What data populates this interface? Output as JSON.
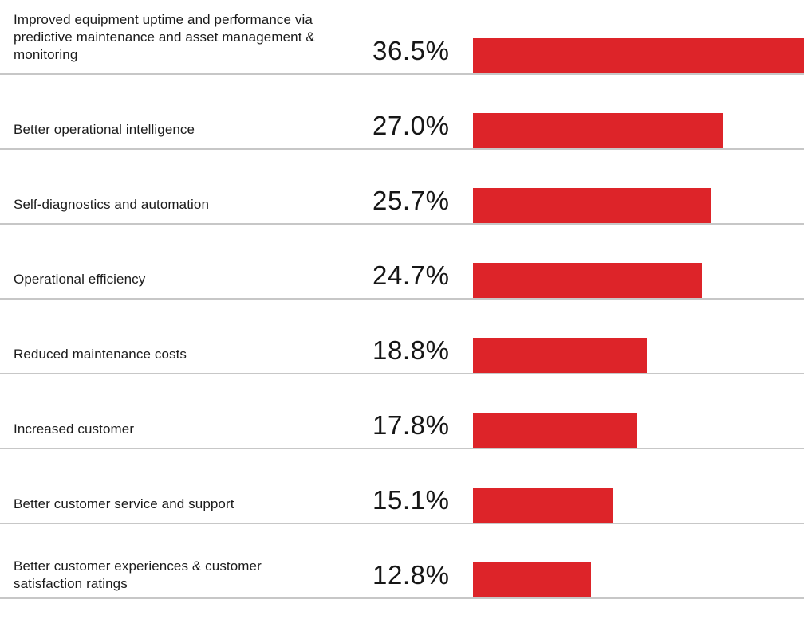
{
  "chart_data": {
    "type": "bar",
    "orientation": "horizontal",
    "title": "",
    "xlabel": "",
    "ylabel": "",
    "grid": false,
    "legend": false,
    "xlim": [
      0,
      36.5
    ],
    "bar_color": "#dd2429",
    "separator_color": "#c7c7c7",
    "categories": [
      "Improved equipment uptime and performance via predictive maintenance and asset management & monitoring",
      "Better operational intelligence",
      "Self-diagnostics and automation",
      "Operational efficiency",
      "Reduced maintenance costs",
      "Increased customer",
      "Better customer service and support",
      "Better customer experiences & customer satisfaction ratings"
    ],
    "values": [
      36.5,
      27.0,
      25.7,
      24.7,
      18.8,
      17.8,
      15.1,
      12.8
    ],
    "value_labels": [
      "36.5%",
      "27.0%",
      "25.7%",
      "24.7%",
      "18.8%",
      "17.8%",
      "15.1%",
      "12.8%"
    ]
  }
}
